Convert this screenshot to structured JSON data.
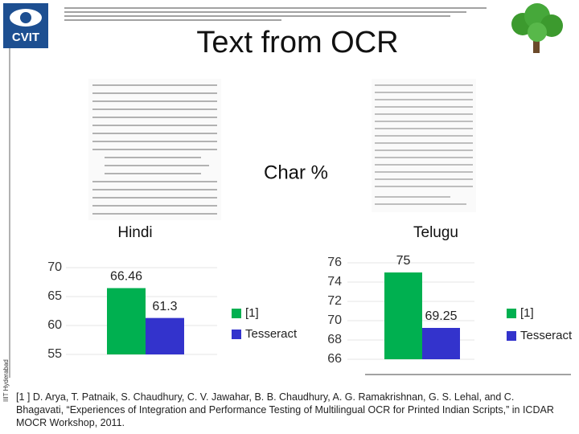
{
  "title": "Text from OCR",
  "heading": "Char %",
  "logo_text": "CVIT",
  "side_text": "IIIT Hyderabad",
  "citation": "[1 ] D. Arya, T. Patnaik, S. Chaudhury, C. V. Jawahar, B. B. Chaudhury, A. G. Ramakrishnan, G. S. Lehal, and C. Bhagavati, “Experiences of Integration and Performance Testing of Multilingual OCR for Printed Indian Scripts,” in ICDAR MOCR Workshop, 2011.",
  "chart_data": [
    {
      "type": "bar",
      "title": "Hindi",
      "ylim": [
        55,
        70
      ],
      "yticks": [
        55,
        60,
        65,
        70
      ],
      "grid": true,
      "series": [
        {
          "name": "[1]",
          "color": "#00b050",
          "values": [
            66.46
          ]
        },
        {
          "name": "Tesseract",
          "color": "#3333cc",
          "values": [
            61.3
          ]
        }
      ]
    },
    {
      "type": "bar",
      "title": "Telugu",
      "ylim": [
        66,
        76
      ],
      "yticks": [
        66,
        68,
        70,
        72,
        74,
        76
      ],
      "grid": true,
      "series": [
        {
          "name": "[1]",
          "color": "#00b050",
          "values": [
            75
          ]
        },
        {
          "name": "Tesseract",
          "color": "#3333cc",
          "values": [
            69.25
          ]
        }
      ]
    }
  ]
}
